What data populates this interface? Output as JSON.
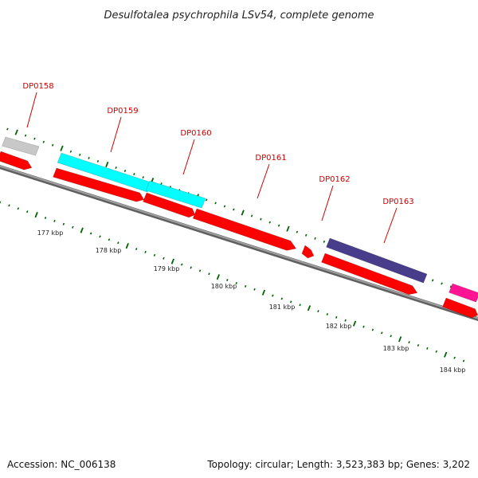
{
  "title": "Desulfotalea psychrophila LSv54, complete genome",
  "accession_text": "Accession: NC_006138",
  "topology_text": "Topology: circular; Length: 3,523,383 bp; Genes: 3,202",
  "colors": {
    "cds_red": "#ff0000",
    "light_gray": "#c8c8c8",
    "cyan": "#00ffff",
    "slate_blue": "#483d8b",
    "magenta": "#ff1493",
    "backbone": "#808080",
    "tick_green": "#006400",
    "label_red": "#cc0000"
  },
  "gene_labels": [
    "DP0158",
    "DP0159",
    "DP0160",
    "DP0161",
    "DP0162",
    "DP0163"
  ],
  "kbp_labels": [
    "177 kbp",
    "178 kbp",
    "179 kbp",
    "180 kbp",
    "181 kbp",
    "182 kbp",
    "183 kbp",
    "184 kbp"
  ]
}
